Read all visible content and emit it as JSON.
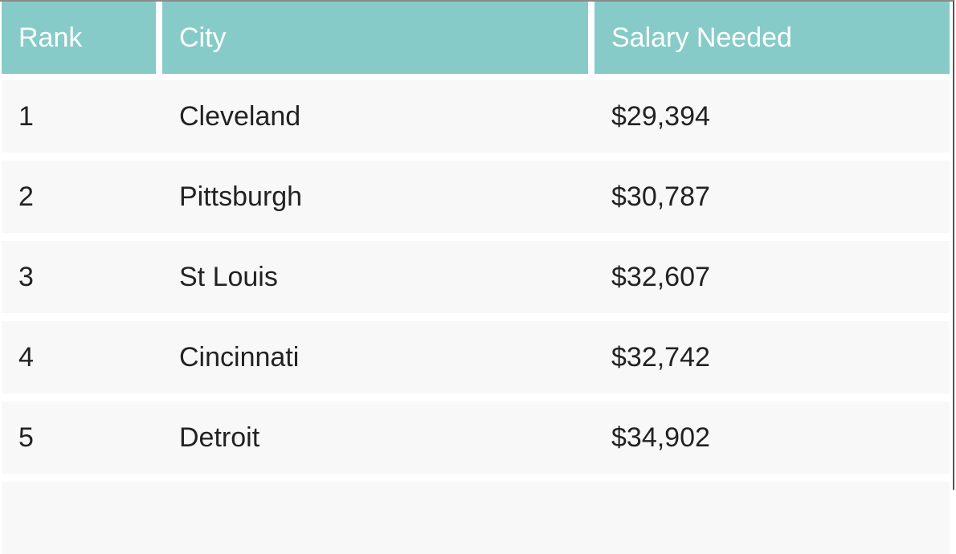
{
  "table": {
    "headers": [
      "Rank",
      "City",
      "Salary Needed"
    ],
    "rows": [
      [
        "1",
        "Cleveland",
        "$29,394"
      ],
      [
        "2",
        "Pittsburgh",
        "$30,787"
      ],
      [
        "3",
        "St Louis",
        "$32,607"
      ],
      [
        "4",
        "Cincinnati",
        "$32,742"
      ],
      [
        "5",
        "Detroit",
        "$34,902"
      ]
    ]
  },
  "colors": {
    "header_bg": "#86cbc8",
    "row_bg": "#f8f8f8"
  }
}
